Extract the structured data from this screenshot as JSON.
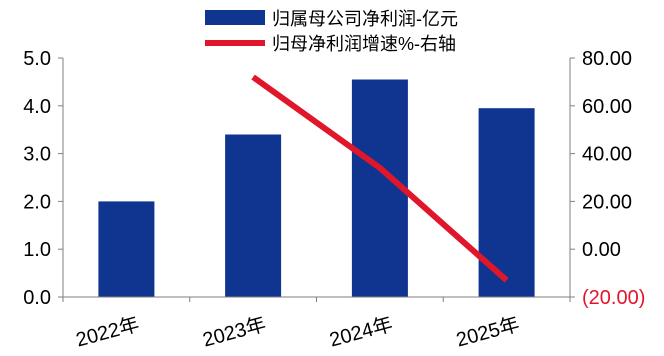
{
  "chart_data": {
    "type": "bar",
    "categories": [
      "2022年",
      "2023年",
      "2024年",
      "2025年"
    ],
    "series": [
      {
        "name": "归属母公司净利润-亿元",
        "type": "bar",
        "axis": "left",
        "color": "#0f3591",
        "values": [
          2.0,
          3.4,
          4.55,
          3.95
        ]
      },
      {
        "name": "归母净利润增速%-右轴",
        "type": "line",
        "axis": "right",
        "color": "#e0162b",
        "values": [
          null,
          72.0,
          34.0,
          -13.0
        ]
      }
    ],
    "left_axis": {
      "ylim": [
        0,
        5
      ],
      "ticks": [
        "0.0",
        "1.0",
        "2.0",
        "3.0",
        "4.0",
        "5.0"
      ]
    },
    "right_axis": {
      "ylim": [
        -20,
        80
      ],
      "ticks": [
        "(20.00)",
        "0.00",
        "20.00",
        "40.00",
        "60.00",
        "80.00"
      ],
      "negative_color": "#e0162b"
    },
    "legend_position": "top-center",
    "grid": false
  }
}
